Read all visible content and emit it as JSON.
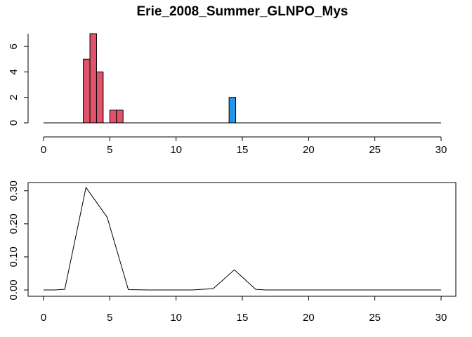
{
  "chart_data": [
    {
      "type": "bar",
      "title": "Erie_2008_Summer_GLNPO_Mys",
      "xlabel": "",
      "ylabel": "",
      "xlim": [
        0,
        30
      ],
      "ylim": [
        0,
        7
      ],
      "xticks": [
        "0",
        "5",
        "10",
        "15",
        "20",
        "25",
        "30"
      ],
      "yticks": [
        "0",
        "2",
        "4",
        "6"
      ],
      "bin_width": 0.5,
      "grid": false,
      "legend": "none",
      "colors": {
        "low": "#DF536B",
        "high": "#2297E6"
      },
      "baseline": [
        0,
        30
      ],
      "bars": [
        {
          "x": 3.0,
          "value": 5,
          "color": "low"
        },
        {
          "x": 3.5,
          "value": 7,
          "color": "low"
        },
        {
          "x": 4.0,
          "value": 4,
          "color": "low"
        },
        {
          "x": 5.0,
          "value": 1,
          "color": "low"
        },
        {
          "x": 5.5,
          "value": 1,
          "color": "low"
        },
        {
          "x": 14.0,
          "value": 2,
          "color": "high"
        }
      ]
    },
    {
      "type": "line",
      "title": "",
      "xlabel": "",
      "ylabel": "",
      "xlim": [
        0,
        30
      ],
      "ylim": [
        0,
        0.31
      ],
      "xticks": [
        "0",
        "5",
        "10",
        "15",
        "20",
        "25",
        "30"
      ],
      "yticks": [
        "0.00",
        "0.10",
        "0.20",
        "0.30"
      ],
      "grid": false,
      "legend": "none",
      "color": "#000000",
      "x": [
        0,
        0.8,
        1.6,
        3.2,
        4.8,
        6.4,
        8.0,
        9.6,
        11.2,
        12.8,
        14.4,
        16.0,
        16.8,
        18.4,
        20.0,
        21.6,
        23.2,
        24.8,
        26.4,
        28.0,
        30.0
      ],
      "y": [
        0.0,
        0.0,
        0.002,
        0.31,
        0.22,
        0.001,
        0.0,
        0.0,
        0.0,
        0.004,
        0.061,
        0.002,
        0.0,
        0.0,
        0.0,
        0.0,
        0.0,
        0.0,
        0.0,
        0.0,
        0.0
      ]
    }
  ]
}
